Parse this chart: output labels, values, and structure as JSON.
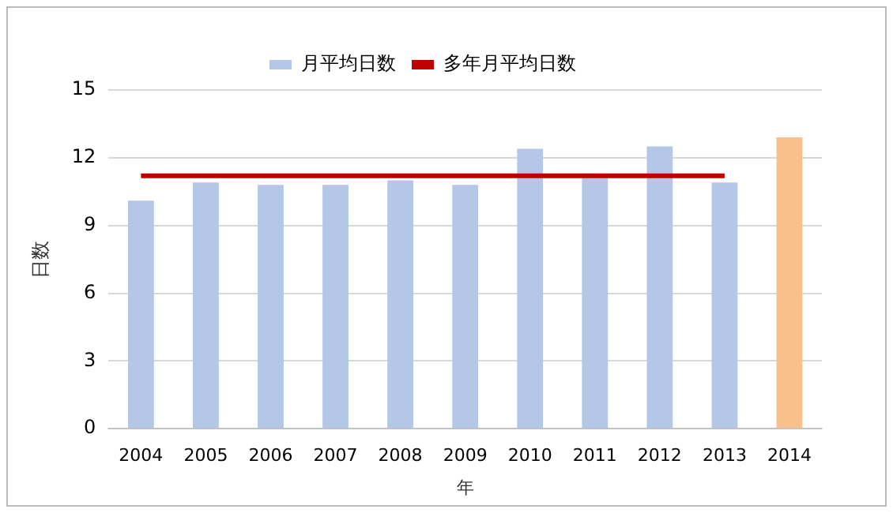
{
  "chart_data": {
    "type": "bar",
    "xlabel": "年",
    "ylabel": "日数",
    "categories": [
      "2004",
      "2005",
      "2006",
      "2007",
      "2008",
      "2009",
      "2010",
      "2011",
      "2012",
      "2013",
      "2014"
    ],
    "series": [
      {
        "name": "月平均日数",
        "color": "#b4c7e7",
        "colors": [
          "#b4c7e7",
          "#b4c7e7",
          "#b4c7e7",
          "#b4c7e7",
          "#b4c7e7",
          "#b4c7e7",
          "#b4c7e7",
          "#b4c7e7",
          "#b4c7e7",
          "#b4c7e7",
          "#f8c08c"
        ],
        "values": [
          10.1,
          10.9,
          10.8,
          10.8,
          11.0,
          10.8,
          12.4,
          11.3,
          12.5,
          10.9,
          12.9
        ]
      },
      {
        "name": "多年月平均日数",
        "type": "line",
        "color": "#c00000",
        "marker": "none",
        "values": [
          11.2,
          11.2,
          11.2,
          11.2,
          11.2,
          11.2,
          11.2,
          11.2,
          11.2,
          11.2,
          null
        ]
      }
    ],
    "ylim": [
      0,
      15
    ],
    "yticks": [
      0,
      3,
      6,
      9,
      12,
      15
    ],
    "grid": "y",
    "legend": "top"
  }
}
